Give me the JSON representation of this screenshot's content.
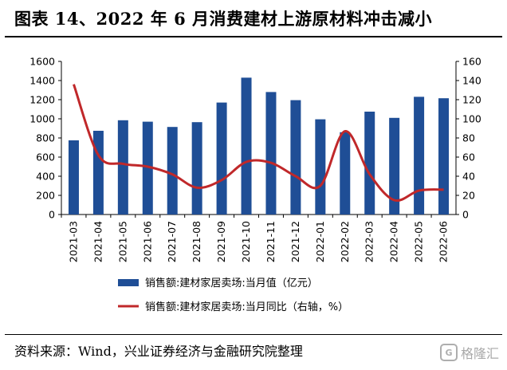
{
  "title": "图表 14、2022 年 6 月消费建材上游原材料冲击减小",
  "source": "资料来源：Wind，兴业证券经济与金融研究院整理",
  "watermark": {
    "logo_text": "G",
    "text": "格隆汇"
  },
  "colors": {
    "bar": "#1f4e96",
    "line": "#c0282a"
  },
  "chart_data": {
    "type": "bar",
    "categories": [
      "2021-03",
      "2021-04",
      "2021-05",
      "2021-06",
      "2021-07",
      "2021-08",
      "2021-09",
      "2021-10",
      "2021-11",
      "2021-12",
      "2022-01",
      "2022-02",
      "2022-03",
      "2022-04",
      "2022-05",
      "2022-06"
    ],
    "series": [
      {
        "name": "销售额:建材家居卖场:当月值（亿元）",
        "type": "bar",
        "axis": "left",
        "values": [
          775,
          875,
          985,
          970,
          915,
          965,
          1170,
          1430,
          1280,
          1195,
          995,
          860,
          1075,
          1010,
          1230,
          1215
        ]
      },
      {
        "name": "销售额:建材家居卖场:当月同比（右轴，%）",
        "type": "line",
        "axis": "right",
        "values": [
          136,
          62,
          53,
          50,
          42,
          28,
          36,
          55,
          54,
          40,
          30,
          87,
          42,
          15,
          25,
          26
        ]
      }
    ],
    "y_left": {
      "min": 0,
      "max": 1600,
      "ticks": [
        0,
        200,
        400,
        600,
        800,
        1000,
        1200,
        1400,
        1600
      ]
    },
    "y_right": {
      "min": 0,
      "max": 160,
      "ticks": [
        0,
        20,
        40,
        60,
        80,
        100,
        120,
        140,
        160
      ]
    },
    "legend_position": "bottom",
    "grid": false
  }
}
